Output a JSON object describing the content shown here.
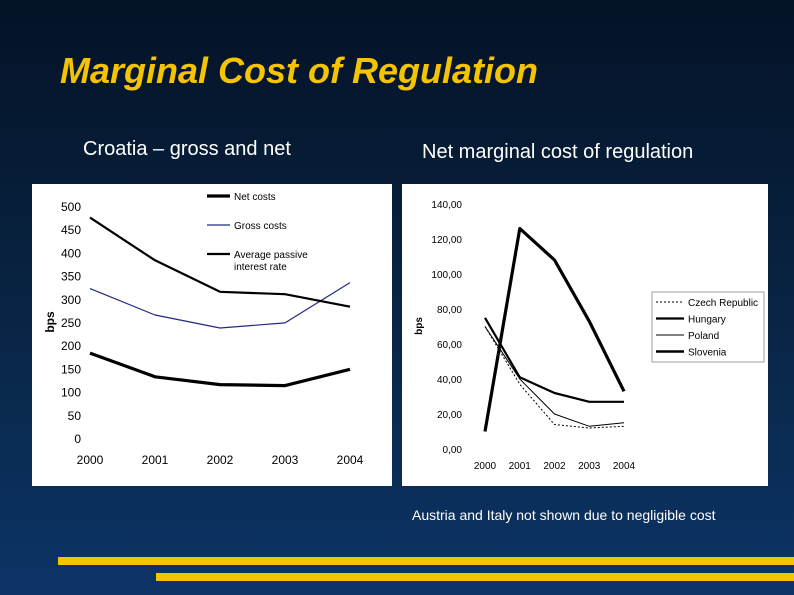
{
  "slide": {
    "title": "Marginal Cost of Regulation",
    "left_subtitle": "Croatia – gross and net",
    "right_subtitle": "Net marginal cost of regulation",
    "footnote": "Austria and Italy not shown due to negligible cost",
    "colors": {
      "title": "#f5c400",
      "accent_bar": "#f5c400",
      "text": "#ffffff"
    }
  },
  "chart_data": [
    {
      "type": "line",
      "ylabel": "bps",
      "xlabel": "",
      "categories": [
        "2000",
        "2001",
        "2002",
        "2003",
        "2004"
      ],
      "ylim": [
        0,
        500
      ],
      "yticks": [
        "0",
        "50",
        "100",
        "150",
        "200",
        "250",
        "300",
        "350",
        "400",
        "450",
        "500"
      ],
      "legend_position": "top-center",
      "series": [
        {
          "name": "Net costs",
          "values": [
            183,
            132,
            115,
            113,
            148
          ],
          "style": "thick"
        },
        {
          "name": "Gross costs",
          "values": [
            322,
            265,
            237,
            248,
            335
          ],
          "style": "thin-blue"
        },
        {
          "name": "Average passive interest rate",
          "values": [
            475,
            383,
            315,
            310,
            283
          ],
          "style": "medium"
        }
      ]
    },
    {
      "type": "line",
      "ylabel": "bps",
      "xlabel": "",
      "categories": [
        "2000",
        "2001",
        "2002",
        "2003",
        "2004"
      ],
      "ylim": [
        0,
        140
      ],
      "yticks": [
        "0,00",
        "20,00",
        "40,00",
        "60,00",
        "80,00",
        "100,00",
        "120,00",
        "140,00"
      ],
      "legend_position": "right",
      "series": [
        {
          "name": "Czech Republic",
          "values": [
            70,
            37,
            14,
            12,
            13
          ],
          "style": "dotted"
        },
        {
          "name": "Hungary",
          "values": [
            75,
            41,
            32,
            27,
            27
          ],
          "style": "medium"
        },
        {
          "name": "Poland",
          "values": [
            70,
            40,
            20,
            13,
            15
          ],
          "style": "thin"
        },
        {
          "name": "Slovenia",
          "values": [
            10,
            126,
            108,
            73,
            33
          ],
          "style": "thick"
        }
      ]
    }
  ]
}
